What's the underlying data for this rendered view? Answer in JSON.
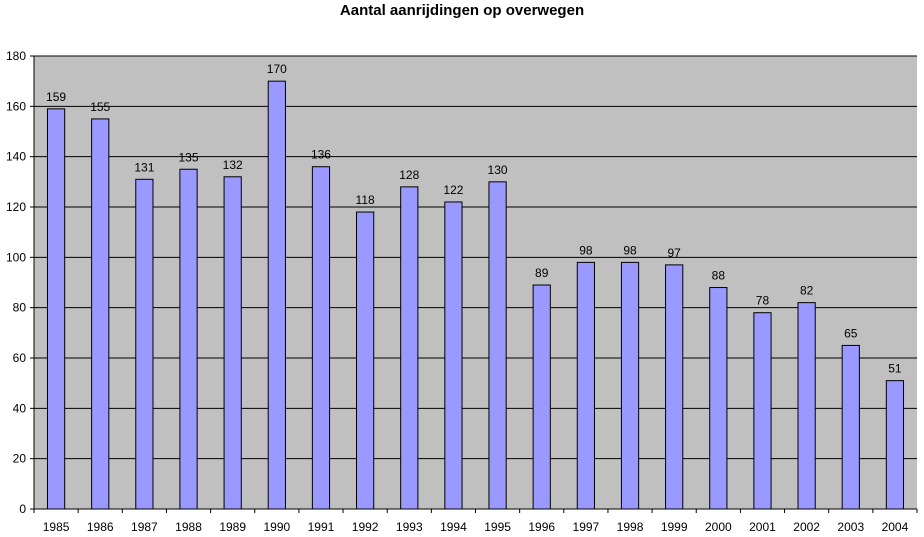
{
  "chart_data": {
    "type": "bar",
    "title": "Aantal aanrijdingen op overwegen",
    "xlabel": "",
    "ylabel": "",
    "categories": [
      "1985",
      "1986",
      "1987",
      "1988",
      "1989",
      "1990",
      "1991",
      "1992",
      "1993",
      "1994",
      "1995",
      "1996",
      "1997",
      "1998",
      "1999",
      "2000",
      "2001",
      "2002",
      "2003",
      "2004"
    ],
    "values": [
      159,
      155,
      131,
      135,
      132,
      170,
      136,
      118,
      128,
      122,
      130,
      89,
      98,
      98,
      97,
      88,
      78,
      82,
      65,
      51
    ],
    "ylim": [
      0,
      180
    ],
    "yticks": [
      0,
      20,
      40,
      60,
      80,
      100,
      120,
      140,
      160,
      180
    ],
    "grid": true,
    "legend": "none",
    "data_labels": true,
    "colors": {
      "bar_fill": "#9999ff",
      "bar_stroke": "#000000",
      "plot_background": "#c0c0c0",
      "gridline": "#000000"
    }
  }
}
